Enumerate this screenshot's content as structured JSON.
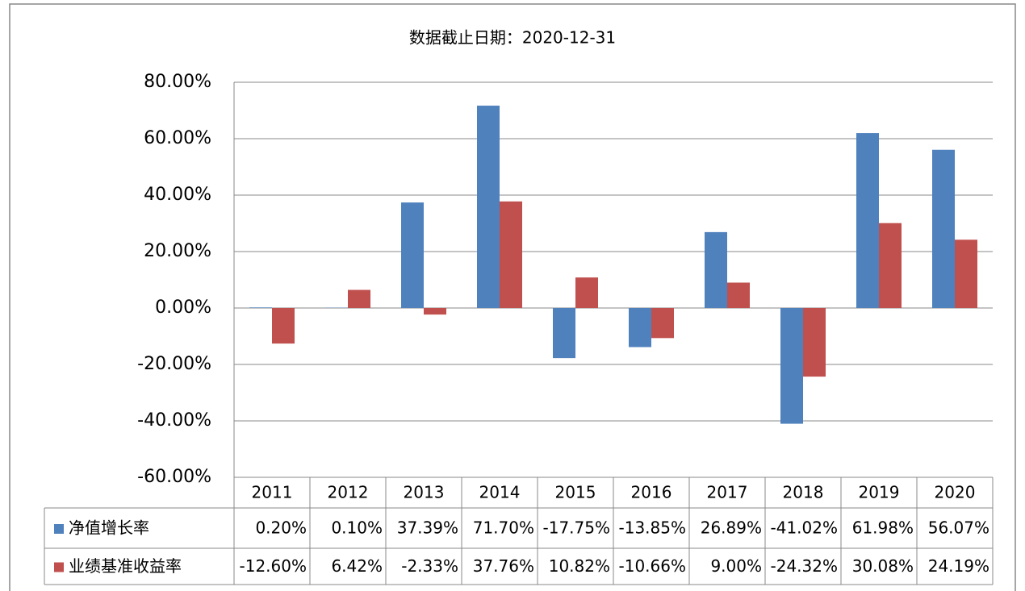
{
  "chart_data": {
    "type": "bar",
    "title": "数据截止日期：2020-12-31",
    "categories": [
      "2011",
      "2012",
      "2013",
      "2014",
      "2015",
      "2016",
      "2017",
      "2018",
      "2019",
      "2020"
    ],
    "series": [
      {
        "name": "净值增长率",
        "color": "#4f81bd",
        "values": [
          0.2,
          0.1,
          37.39,
          71.7,
          -17.75,
          -13.85,
          26.89,
          -41.02,
          61.98,
          56.07
        ],
        "value_labels": [
          "0.20%",
          "0.10%",
          "37.39%",
          "71.70%",
          "-17.75%",
          "-13.85%",
          "26.89%",
          "-41.02%",
          "61.98%",
          "56.07%"
        ]
      },
      {
        "name": "业绩基准收益率",
        "color": "#c0504d",
        "values": [
          -12.6,
          6.42,
          -2.33,
          37.76,
          10.82,
          -10.66,
          9.0,
          -24.32,
          30.08,
          24.19
        ],
        "value_labels": [
          "-12.60%",
          "6.42%",
          "-2.33%",
          "37.76%",
          "10.82%",
          "-10.66%",
          "9.00%",
          "-24.32%",
          "30.08%",
          "24.19%"
        ]
      }
    ],
    "ylim": [
      -60,
      80
    ],
    "yticks": [
      {
        "value": -60,
        "label": "-60.00%"
      },
      {
        "value": -40,
        "label": "-40.00%"
      },
      {
        "value": -20,
        "label": "-20.00%"
      },
      {
        "value": 0,
        "label": "0.00%"
      },
      {
        "value": 20,
        "label": "20.00%"
      },
      {
        "value": 40,
        "label": "40.00%"
      },
      {
        "value": 60,
        "label": "60.00%"
      },
      {
        "value": 80,
        "label": "80.00%"
      }
    ],
    "grid": true
  }
}
